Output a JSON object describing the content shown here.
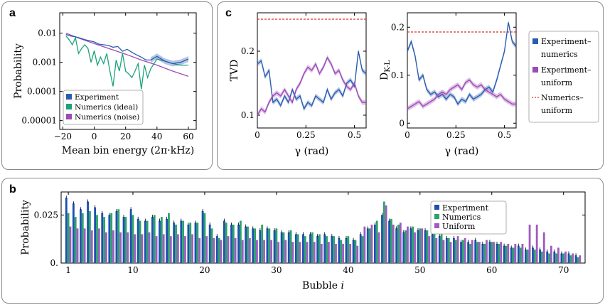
{
  "colors": {
    "experiment": "#2a5db0",
    "numerics": "#1aa37a",
    "uniform": "#9b4ab8",
    "ref": "#d9342b",
    "bar_exp": "#1f4fb0",
    "bar_num": "#2ca36b",
    "bar_uni": "#a05bc0"
  },
  "chart_data": [
    {
      "panel": "a",
      "type": "line",
      "xlabel": "Mean bin energy (2π·kHz)",
      "ylabel": "Probability",
      "xlim": [
        -22,
        65
      ],
      "ylim": [
        5e-06,
        0.05
      ],
      "yscale": "log",
      "xticks": [
        -20,
        0,
        20,
        40,
        60
      ],
      "xtick_labels": [
        "−20",
        "0",
        "20",
        "40",
        "60"
      ],
      "yticks": [
        0.01,
        0.001,
        0.0001,
        1e-05
      ],
      "ytick_labels": [
        "0.01",
        "0.001",
        "0.0001",
        "0.00001"
      ],
      "legend": [
        "Experiment",
        "Numerics (ideal)",
        "Numerics (noise)"
      ],
      "series": [
        {
          "name": "Experiment",
          "x": [
            -18,
            -15,
            -12,
            -9,
            -6,
            -3,
            0,
            3,
            6,
            9,
            12,
            15,
            18,
            21,
            24,
            27,
            30,
            33,
            36,
            40,
            45,
            50,
            55,
            60
          ],
          "y": [
            0.009,
            0.008,
            0.0075,
            0.0068,
            0.006,
            0.0055,
            0.005,
            0.0042,
            0.004,
            0.0038,
            0.0033,
            0.0035,
            0.0024,
            0.0028,
            0.0022,
            0.0018,
            0.0015,
            0.0012,
            0.0012,
            0.0016,
            0.0011,
            0.0009,
            0.001,
            0.0013
          ]
        },
        {
          "name": "Numerics (ideal)",
          "x": [
            -18,
            -16,
            -14,
            -12,
            -10,
            -8,
            -6,
            -4,
            -2,
            0,
            2,
            4,
            6,
            8,
            10,
            12,
            14,
            16,
            18,
            20,
            22,
            24,
            26,
            28,
            30,
            32,
            34,
            36,
            40,
            45,
            50,
            55,
            60
          ],
          "y": [
            0.008,
            0.006,
            0.004,
            0.007,
            0.002,
            0.003,
            0.004,
            0.003,
            0.001,
            0.0025,
            0.0008,
            0.0015,
            0.0009,
            0.002,
            0.0005,
            0.00015,
            0.0012,
            0.0005,
            0.002,
            0.0005,
            0.0004,
            0.0003,
            0.0005,
            0.0009,
            0.00012,
            0.0008,
            0.0003,
            0.0006,
            0.0013,
            0.0011,
            0.0009,
            0.0008,
            0.0008
          ]
        },
        {
          "name": "Numerics (noise)",
          "x": [
            -18,
            -10,
            0,
            10,
            20,
            30,
            40,
            50,
            60
          ],
          "y": [
            0.01,
            0.0068,
            0.0044,
            0.0029,
            0.0019,
            0.0012,
            0.0008,
            0.0005,
            0.00033
          ]
        }
      ]
    },
    {
      "panel": "c-left",
      "type": "line",
      "xlabel": "γ (rad)",
      "ylabel": "TVD",
      "xlim": [
        0,
        0.56
      ],
      "ylim": [
        0.08,
        0.26
      ],
      "xticks": [
        0,
        0.25,
        0.5
      ],
      "xtick_labels": [
        "0",
        "0.25",
        "0.5"
      ],
      "yticks": [
        0.1,
        0.2
      ],
      "ytick_labels": [
        "0.1",
        "0.2"
      ],
      "reference": 0.25,
      "series": [
        {
          "name": "Experiment–numerics",
          "x": [
            0,
            0.02,
            0.04,
            0.06,
            0.08,
            0.1,
            0.12,
            0.14,
            0.16,
            0.18,
            0.2,
            0.22,
            0.24,
            0.26,
            0.28,
            0.3,
            0.32,
            0.34,
            0.36,
            0.38,
            0.4,
            0.42,
            0.44,
            0.46,
            0.48,
            0.5,
            0.52,
            0.54,
            0.56
          ],
          "y": [
            0.18,
            0.185,
            0.16,
            0.17,
            0.12,
            0.125,
            0.115,
            0.13,
            0.12,
            0.14,
            0.125,
            0.13,
            0.11,
            0.12,
            0.115,
            0.13,
            0.125,
            0.12,
            0.14,
            0.125,
            0.135,
            0.14,
            0.13,
            0.15,
            0.155,
            0.145,
            0.2,
            0.17,
            0.165
          ]
        },
        {
          "name": "Experiment–uniform",
          "x": [
            0,
            0.02,
            0.04,
            0.06,
            0.08,
            0.1,
            0.12,
            0.14,
            0.16,
            0.18,
            0.2,
            0.22,
            0.24,
            0.26,
            0.28,
            0.3,
            0.32,
            0.34,
            0.36,
            0.38,
            0.4,
            0.42,
            0.44,
            0.46,
            0.48,
            0.5,
            0.52,
            0.54,
            0.56
          ],
          "y": [
            0.1,
            0.11,
            0.105,
            0.12,
            0.13,
            0.135,
            0.13,
            0.14,
            0.13,
            0.12,
            0.14,
            0.15,
            0.165,
            0.175,
            0.17,
            0.18,
            0.165,
            0.175,
            0.19,
            0.18,
            0.165,
            0.17,
            0.155,
            0.145,
            0.14,
            0.15,
            0.13,
            0.12,
            0.12
          ]
        }
      ]
    },
    {
      "panel": "c-right",
      "type": "line",
      "xlabel": "γ (rad)",
      "ylabel": "D_K-L",
      "xlim": [
        0,
        0.56
      ],
      "ylim": [
        -0.01,
        0.23
      ],
      "xticks": [
        0,
        0.25,
        0.5
      ],
      "xtick_labels": [
        "0",
        "0.25",
        "0.5"
      ],
      "yticks": [
        0,
        0.1,
        0.2
      ],
      "ytick_labels": [
        "0",
        "0.1",
        "0.2"
      ],
      "reference": 0.19,
      "series": [
        {
          "name": "Experiment–numerics",
          "x": [
            0,
            0.02,
            0.04,
            0.06,
            0.08,
            0.1,
            0.12,
            0.14,
            0.16,
            0.18,
            0.2,
            0.22,
            0.24,
            0.26,
            0.28,
            0.3,
            0.32,
            0.34,
            0.36,
            0.38,
            0.4,
            0.42,
            0.44,
            0.46,
            0.48,
            0.5,
            0.52,
            0.54,
            0.56
          ],
          "y": [
            0.15,
            0.17,
            0.14,
            0.09,
            0.1,
            0.07,
            0.06,
            0.065,
            0.055,
            0.06,
            0.05,
            0.06,
            0.055,
            0.04,
            0.05,
            0.045,
            0.06,
            0.05,
            0.055,
            0.06,
            0.07,
            0.075,
            0.065,
            0.09,
            0.12,
            0.15,
            0.21,
            0.17,
            0.16
          ]
        },
        {
          "name": "Experiment–uniform",
          "x": [
            0,
            0.02,
            0.04,
            0.06,
            0.08,
            0.1,
            0.12,
            0.14,
            0.16,
            0.18,
            0.2,
            0.22,
            0.24,
            0.26,
            0.28,
            0.3,
            0.32,
            0.34,
            0.36,
            0.38,
            0.4,
            0.42,
            0.44,
            0.46,
            0.48,
            0.5,
            0.52,
            0.54,
            0.56
          ],
          "y": [
            0.03,
            0.035,
            0.04,
            0.045,
            0.035,
            0.04,
            0.045,
            0.05,
            0.06,
            0.065,
            0.06,
            0.07,
            0.075,
            0.08,
            0.07,
            0.085,
            0.09,
            0.08,
            0.075,
            0.08,
            0.07,
            0.065,
            0.06,
            0.055,
            0.06,
            0.05,
            0.045,
            0.04,
            0.04
          ]
        }
      ]
    },
    {
      "panel": "b",
      "type": "bar",
      "xlabel": "Bubble i",
      "ylabel": "Probability",
      "xlim": [
        0,
        73
      ],
      "ylim": [
        0,
        0.037
      ],
      "xticks": [
        1,
        10,
        20,
        30,
        40,
        50,
        60,
        70
      ],
      "xtick_labels": [
        "1",
        "10",
        "20",
        "30",
        "40",
        "50",
        "60",
        "70"
      ],
      "yticks": [
        0,
        0.025
      ],
      "ytick_labels": [
        "0.",
        "0.025"
      ],
      "legend": [
        "Experiment",
        "Numerics",
        "Uniform"
      ],
      "experiment": [
        0.034,
        0.031,
        0.028,
        0.032,
        0.029,
        0.026,
        0.025,
        0.027,
        0.024,
        0.028,
        0.023,
        0.022,
        0.024,
        0.022,
        0.023,
        0.021,
        0.022,
        0.02,
        0.021,
        0.027,
        0.02,
        0.014,
        0.022,
        0.02,
        0.02,
        0.019,
        0.018,
        0.017,
        0.018,
        0.017,
        0.016,
        0.016,
        0.015,
        0.015,
        0.015,
        0.014,
        0.015,
        0.014,
        0.013,
        0.013,
        0.012,
        0.015,
        0.018,
        0.02,
        0.025,
        0.022,
        0.018,
        0.016,
        0.018,
        0.017,
        0.017,
        0.015,
        0.014,
        0.013,
        0.013,
        0.011,
        0.011,
        0.012,
        0.01,
        0.011,
        0.01,
        0.009,
        0.008,
        0.009,
        0.007,
        0.008,
        0.007,
        0.006,
        0.006,
        0.005,
        0.005,
        0.004
      ],
      "numerics": [
        0.026,
        0.024,
        0.026,
        0.027,
        0.025,
        0.024,
        0.026,
        0.028,
        0.024,
        0.025,
        0.022,
        0.022,
        0.025,
        0.024,
        0.026,
        0.02,
        0.022,
        0.021,
        0.021,
        0.026,
        0.018,
        0.013,
        0.021,
        0.02,
        0.022,
        0.019,
        0.018,
        0.02,
        0.018,
        0.018,
        0.016,
        0.017,
        0.015,
        0.014,
        0.016,
        0.015,
        0.014,
        0.014,
        0.012,
        0.014,
        0.012,
        0.014,
        0.018,
        0.022,
        0.032,
        0.023,
        0.02,
        0.017,
        0.019,
        0.018,
        0.017,
        0.016,
        0.015,
        0.013,
        0.012,
        0.012,
        0.01,
        0.011,
        0.01,
        0.011,
        0.01,
        0.009,
        0.008,
        0.008,
        0.007,
        0.007,
        0.006,
        0.005,
        0.005,
        0.005,
        0.004,
        0.003
      ],
      "uniform": [
        0.019,
        0.018,
        0.018,
        0.017,
        0.018,
        0.016,
        0.017,
        0.016,
        0.016,
        0.015,
        0.015,
        0.016,
        0.014,
        0.015,
        0.014,
        0.015,
        0.014,
        0.015,
        0.013,
        0.014,
        0.013,
        0.012,
        0.014,
        0.013,
        0.012,
        0.013,
        0.012,
        0.012,
        0.012,
        0.011,
        0.012,
        0.011,
        0.011,
        0.011,
        0.011,
        0.01,
        0.011,
        0.01,
        0.01,
        0.01,
        0.009,
        0.019,
        0.02,
        0.016,
        0.03,
        0.02,
        0.021,
        0.019,
        0.016,
        0.018,
        0.014,
        0.013,
        0.012,
        0.011,
        0.014,
        0.013,
        0.012,
        0.011,
        0.012,
        0.011,
        0.011,
        0.01,
        0.01,
        0.01,
        0.02,
        0.02,
        0.016,
        0.009,
        0.008,
        0.006,
        0.005,
        0.004
      ]
    }
  ],
  "labels": {
    "a": "a",
    "b": "b",
    "c": "c",
    "legend_c": [
      "Experiment–",
      "numerics",
      "Experiment–",
      "uniform",
      "Numerics–",
      "uniform"
    ]
  }
}
